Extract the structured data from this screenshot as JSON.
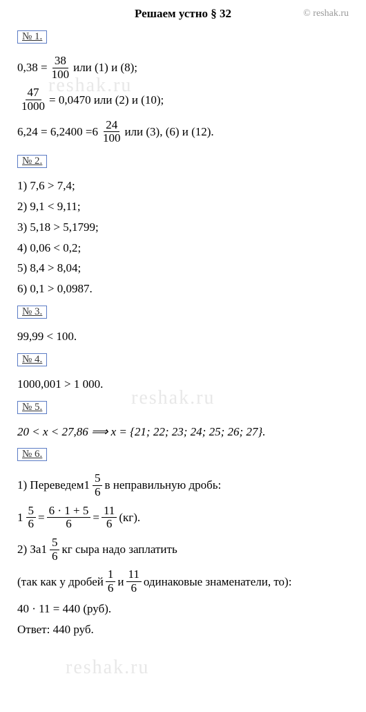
{
  "header": {
    "title": "Решаем устно § 32",
    "copyright": "© reshak.ru"
  },
  "watermark": "reshak.ru",
  "p1": {
    "num": "№ 1.",
    "l1a": "0,38 = ",
    "l1frac": {
      "n": "38",
      "d": "100"
    },
    "l1b": "  или (1) и (8);",
    "l2frac": {
      "n": "47",
      "d": "1000"
    },
    "l2b": " = 0,0470  или  (2) и (10);",
    "l3a": "6,24 = 6,2400 = ",
    "l3whole": "6",
    "l3frac": {
      "n": "24",
      "d": "100"
    },
    "l3b": "   или  (3), (6) и (12)."
  },
  "p2": {
    "num": "№ 2.",
    "i1": "1) 7,6 > 7,4;",
    "i2": "2) 9,1 < 9,11;",
    "i3": "3) 5,18 > 5,1799;",
    "i4": "4) 0,06 < 0,2;",
    "i5": "5) 8,4 > 8,04;",
    "i6": "6) 0,1 > 0,0987."
  },
  "p3": {
    "num": "№ 3.",
    "l1": "99,99 < 100."
  },
  "p4": {
    "num": "№ 4.",
    "l1": "1000,001 > 1 000."
  },
  "p5": {
    "num": "№ 5.",
    "l1": "20 < x < 27,86    ⟹    x = {21; 22; 23; 24; 25; 26; 27}."
  },
  "p6": {
    "num": "№ 6.",
    "l1a": "1) Переведем ",
    "l1whole": "1",
    "l1frac": {
      "n": "5",
      "d": "6"
    },
    "l1b": "  в неправильную дробь:",
    "l2whole": "1",
    "l2frac1": {
      "n": "5",
      "d": "6"
    },
    "l2eq": " = ",
    "l2frac2": {
      "n": "6 · 1 + 5",
      "d": "6"
    },
    "l2eq2": " = ",
    "l2frac3": {
      "n": "11",
      "d": "6"
    },
    "l2end": " (кг).",
    "l3a": "2) За ",
    "l3whole": "1",
    "l3frac": {
      "n": "5",
      "d": "6"
    },
    "l3b": " кг сыра надо заплатить",
    "l4a": "(так как у дробей ",
    "l4frac1": {
      "n": "1",
      "d": "6"
    },
    "l4mid": "  и  ",
    "l4frac2": {
      "n": "11",
      "d": "6"
    },
    "l4b": "  одинаковые знаменатели, то):",
    "l5": "40 · 11 = 440 (руб).",
    "ans": "Ответ: 440 руб."
  }
}
